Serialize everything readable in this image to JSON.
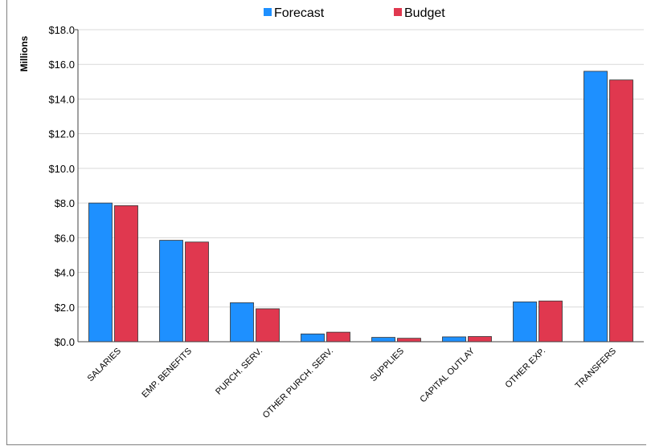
{
  "chart_data": {
    "type": "bar",
    "title": "",
    "xlabel": "",
    "ylabel": "Millions",
    "ylim": [
      0,
      18
    ],
    "yticks": [
      "$0.0",
      "$2.0",
      "$4.0",
      "$6.0",
      "$8.0",
      "$10.0",
      "$12.0",
      "$14.0",
      "$16.0",
      "$18.0"
    ],
    "grid": true,
    "legend_position": "top",
    "categories": [
      "SALARIES",
      "EMP. BENEFITS",
      "PURCH. SERV.",
      "OTHER PURCH. SERV.",
      "SUPPLIES",
      "CAPITAL OUTLAY",
      "OTHER EXP.",
      "TRANSFERS"
    ],
    "series": [
      {
        "name": "Forecast",
        "color": "#1e90ff",
        "values": [
          8.0,
          5.85,
          2.25,
          0.45,
          0.25,
          0.28,
          2.3,
          15.6
        ]
      },
      {
        "name": "Budget",
        "color": "#e0384f",
        "values": [
          7.85,
          5.75,
          1.9,
          0.55,
          0.2,
          0.3,
          2.35,
          15.1
        ]
      }
    ]
  }
}
